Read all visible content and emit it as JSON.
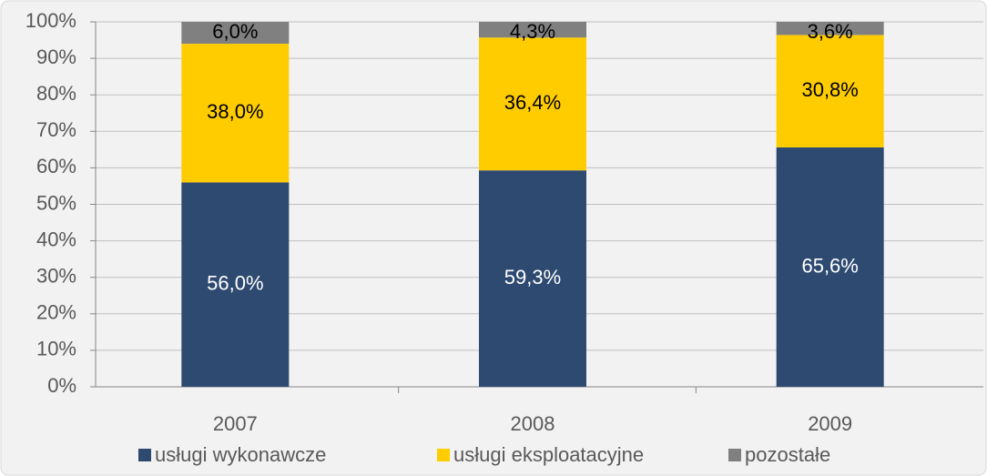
{
  "chart_data": {
    "type": "stacked_bar",
    "categories": [
      "2007",
      "2008",
      "2009"
    ],
    "series": [
      {
        "name": "usługi wykonawcze",
        "color": "#2e4a70",
        "values": [
          56.0,
          59.3,
          65.6
        ],
        "value_labels": [
          "56,0%",
          "59,3%",
          "65,6%"
        ]
      },
      {
        "name": "usługi eksploatacyjne",
        "color": "#ffcc00",
        "values": [
          38.0,
          36.4,
          30.8
        ],
        "value_labels": [
          "38,0%",
          "36,4%",
          "30,8%"
        ]
      },
      {
        "name": "pozostałe",
        "color": "#808080",
        "values": [
          6.0,
          4.3,
          3.6
        ],
        "value_labels": [
          "6,0%",
          "4,3%",
          "3,6%"
        ]
      }
    ],
    "ylim": [
      0,
      100
    ],
    "yticks": [
      {
        "value": 0,
        "label": "0%"
      },
      {
        "value": 10,
        "label": "10%"
      },
      {
        "value": 20,
        "label": "20%"
      },
      {
        "value": 30,
        "label": "30%"
      },
      {
        "value": 40,
        "label": "40%"
      },
      {
        "value": 50,
        "label": "50%"
      },
      {
        "value": 60,
        "label": "60%"
      },
      {
        "value": 70,
        "label": "70%"
      },
      {
        "value": 80,
        "label": "80%"
      },
      {
        "value": 90,
        "label": "90%"
      },
      {
        "value": 100,
        "label": "100%"
      }
    ],
    "grid": true,
    "legend": "bottom"
  }
}
